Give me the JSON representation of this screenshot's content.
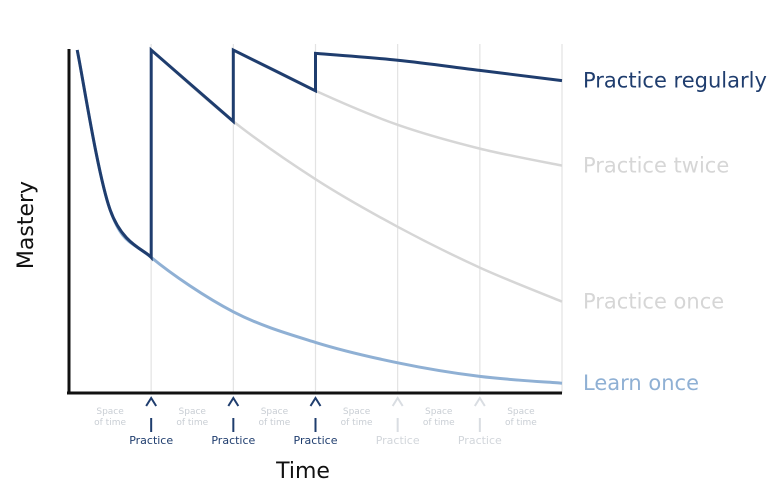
{
  "chart_data": {
    "type": "line",
    "title": "",
    "xlabel": "Time",
    "ylabel": "Mastery",
    "xlim": [
      0,
      6
    ],
    "ylim": [
      0,
      1
    ],
    "grid": "vertical",
    "events": [
      {
        "label": "Practice",
        "x": 1,
        "active": true
      },
      {
        "label": "Practice",
        "x": 2,
        "active": true
      },
      {
        "label": "Practice",
        "x": 3,
        "active": true
      },
      {
        "label": "Practice",
        "x": 4,
        "active": false
      },
      {
        "label": "Practice",
        "x": 5,
        "active": false
      }
    ],
    "intervals": [
      {
        "label": "Space of time",
        "x": 0.5
      },
      {
        "label": "Space of time",
        "x": 1.5
      },
      {
        "label": "Space of time",
        "x": 2.5
      },
      {
        "label": "Space of time",
        "x": 3.5
      },
      {
        "label": "Space of time",
        "x": 4.5
      },
      {
        "label": "Space of time",
        "x": 5.5
      }
    ],
    "series": [
      {
        "name": "Learn once",
        "color": "#8fb0d4",
        "x": [
          0.1,
          0.5,
          1,
          2,
          3,
          4,
          5,
          6
        ],
        "values": [
          1.0,
          0.53,
          0.39,
          0.23,
          0.14,
          0.08,
          0.04,
          0.02
        ]
      },
      {
        "name": "Practice once",
        "color": "#d6d6d6",
        "x": [
          1,
          2,
          3,
          4,
          5,
          6
        ],
        "values": [
          1.0,
          0.79,
          0.62,
          0.48,
          0.36,
          0.26
        ]
      },
      {
        "name": "Practice twice",
        "color": "#d6d6d6",
        "x": [
          2,
          3,
          4,
          5,
          6
        ],
        "values": [
          1.0,
          0.88,
          0.78,
          0.71,
          0.66
        ]
      },
      {
        "name": "Practice regularly",
        "color": "#1f3d6e",
        "x": [
          0.1,
          0.5,
          1,
          1,
          2,
          2,
          3,
          3,
          4,
          5,
          6
        ],
        "values": [
          1.0,
          0.53,
          0.39,
          1.0,
          0.79,
          1.0,
          0.88,
          0.99,
          0.97,
          0.94,
          0.91
        ]
      }
    ]
  }
}
